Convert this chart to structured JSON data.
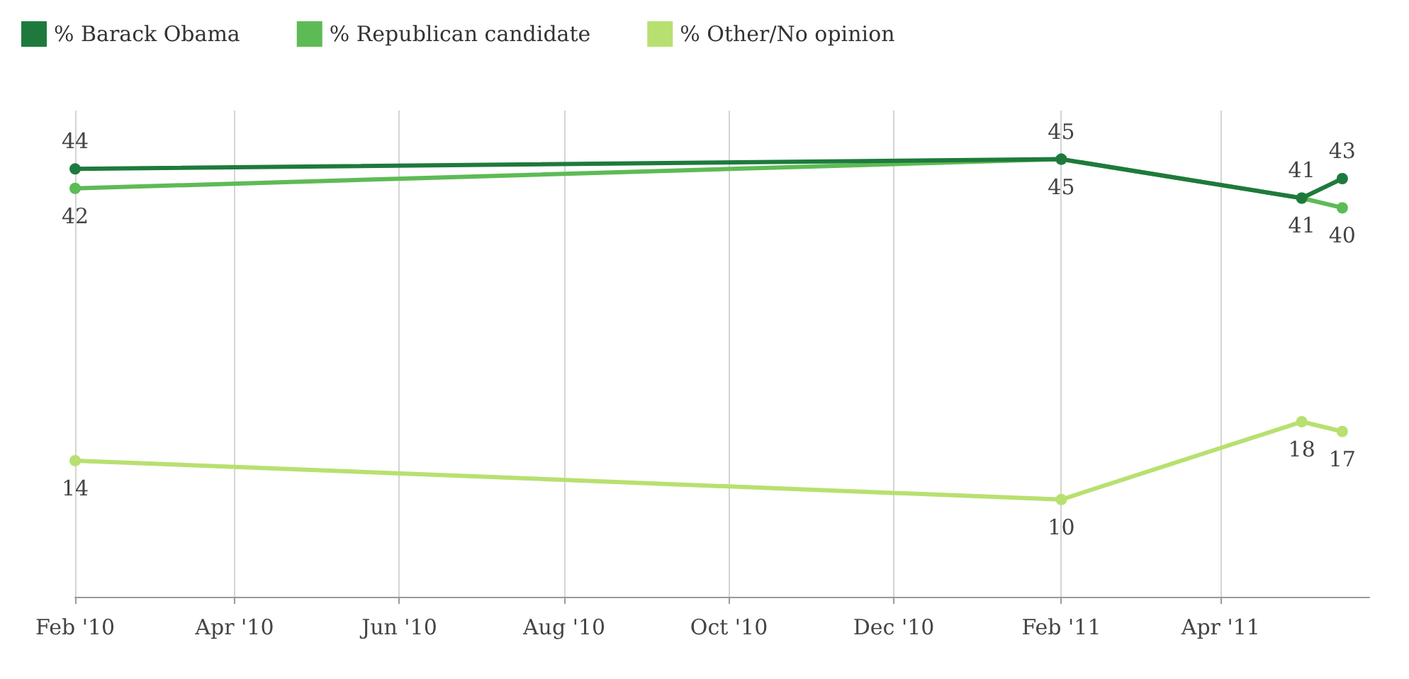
{
  "chart_data": {
    "type": "line",
    "x": [
      "2010-02-01",
      "2011-02-01",
      "2011-05-01",
      "2011-05-16"
    ],
    "series": [
      {
        "name": "% Barack Obama",
        "color": "#1e7a3c",
        "values": [
          44,
          45,
          41,
          43
        ]
      },
      {
        "name": "% Republican candidate",
        "color": "#5dbb55",
        "values": [
          42,
          45,
          41,
          40
        ]
      },
      {
        "name": "% Other/No opinion",
        "color": "#b8e070",
        "values": [
          14,
          10,
          18,
          17
        ]
      }
    ],
    "xlim": [
      "2010-02-01",
      "2011-05-26"
    ],
    "xticks": [
      {
        "value": "2010-02-01",
        "label": "Feb '10"
      },
      {
        "value": "2010-04-01",
        "label": "Apr '10"
      },
      {
        "value": "2010-06-01",
        "label": "Jun '10"
      },
      {
        "value": "2010-08-01",
        "label": "Aug '10"
      },
      {
        "value": "2010-10-01",
        "label": "Oct '10"
      },
      {
        "value": "2010-12-01",
        "label": "Dec '10"
      },
      {
        "value": "2011-02-01",
        "label": "Feb '11"
      },
      {
        "value": "2011-04-01",
        "label": "Apr '11"
      }
    ],
    "data_labels": true,
    "grid": "x",
    "legend": "top left",
    "marker": "circle",
    "line_style": "solid"
  }
}
